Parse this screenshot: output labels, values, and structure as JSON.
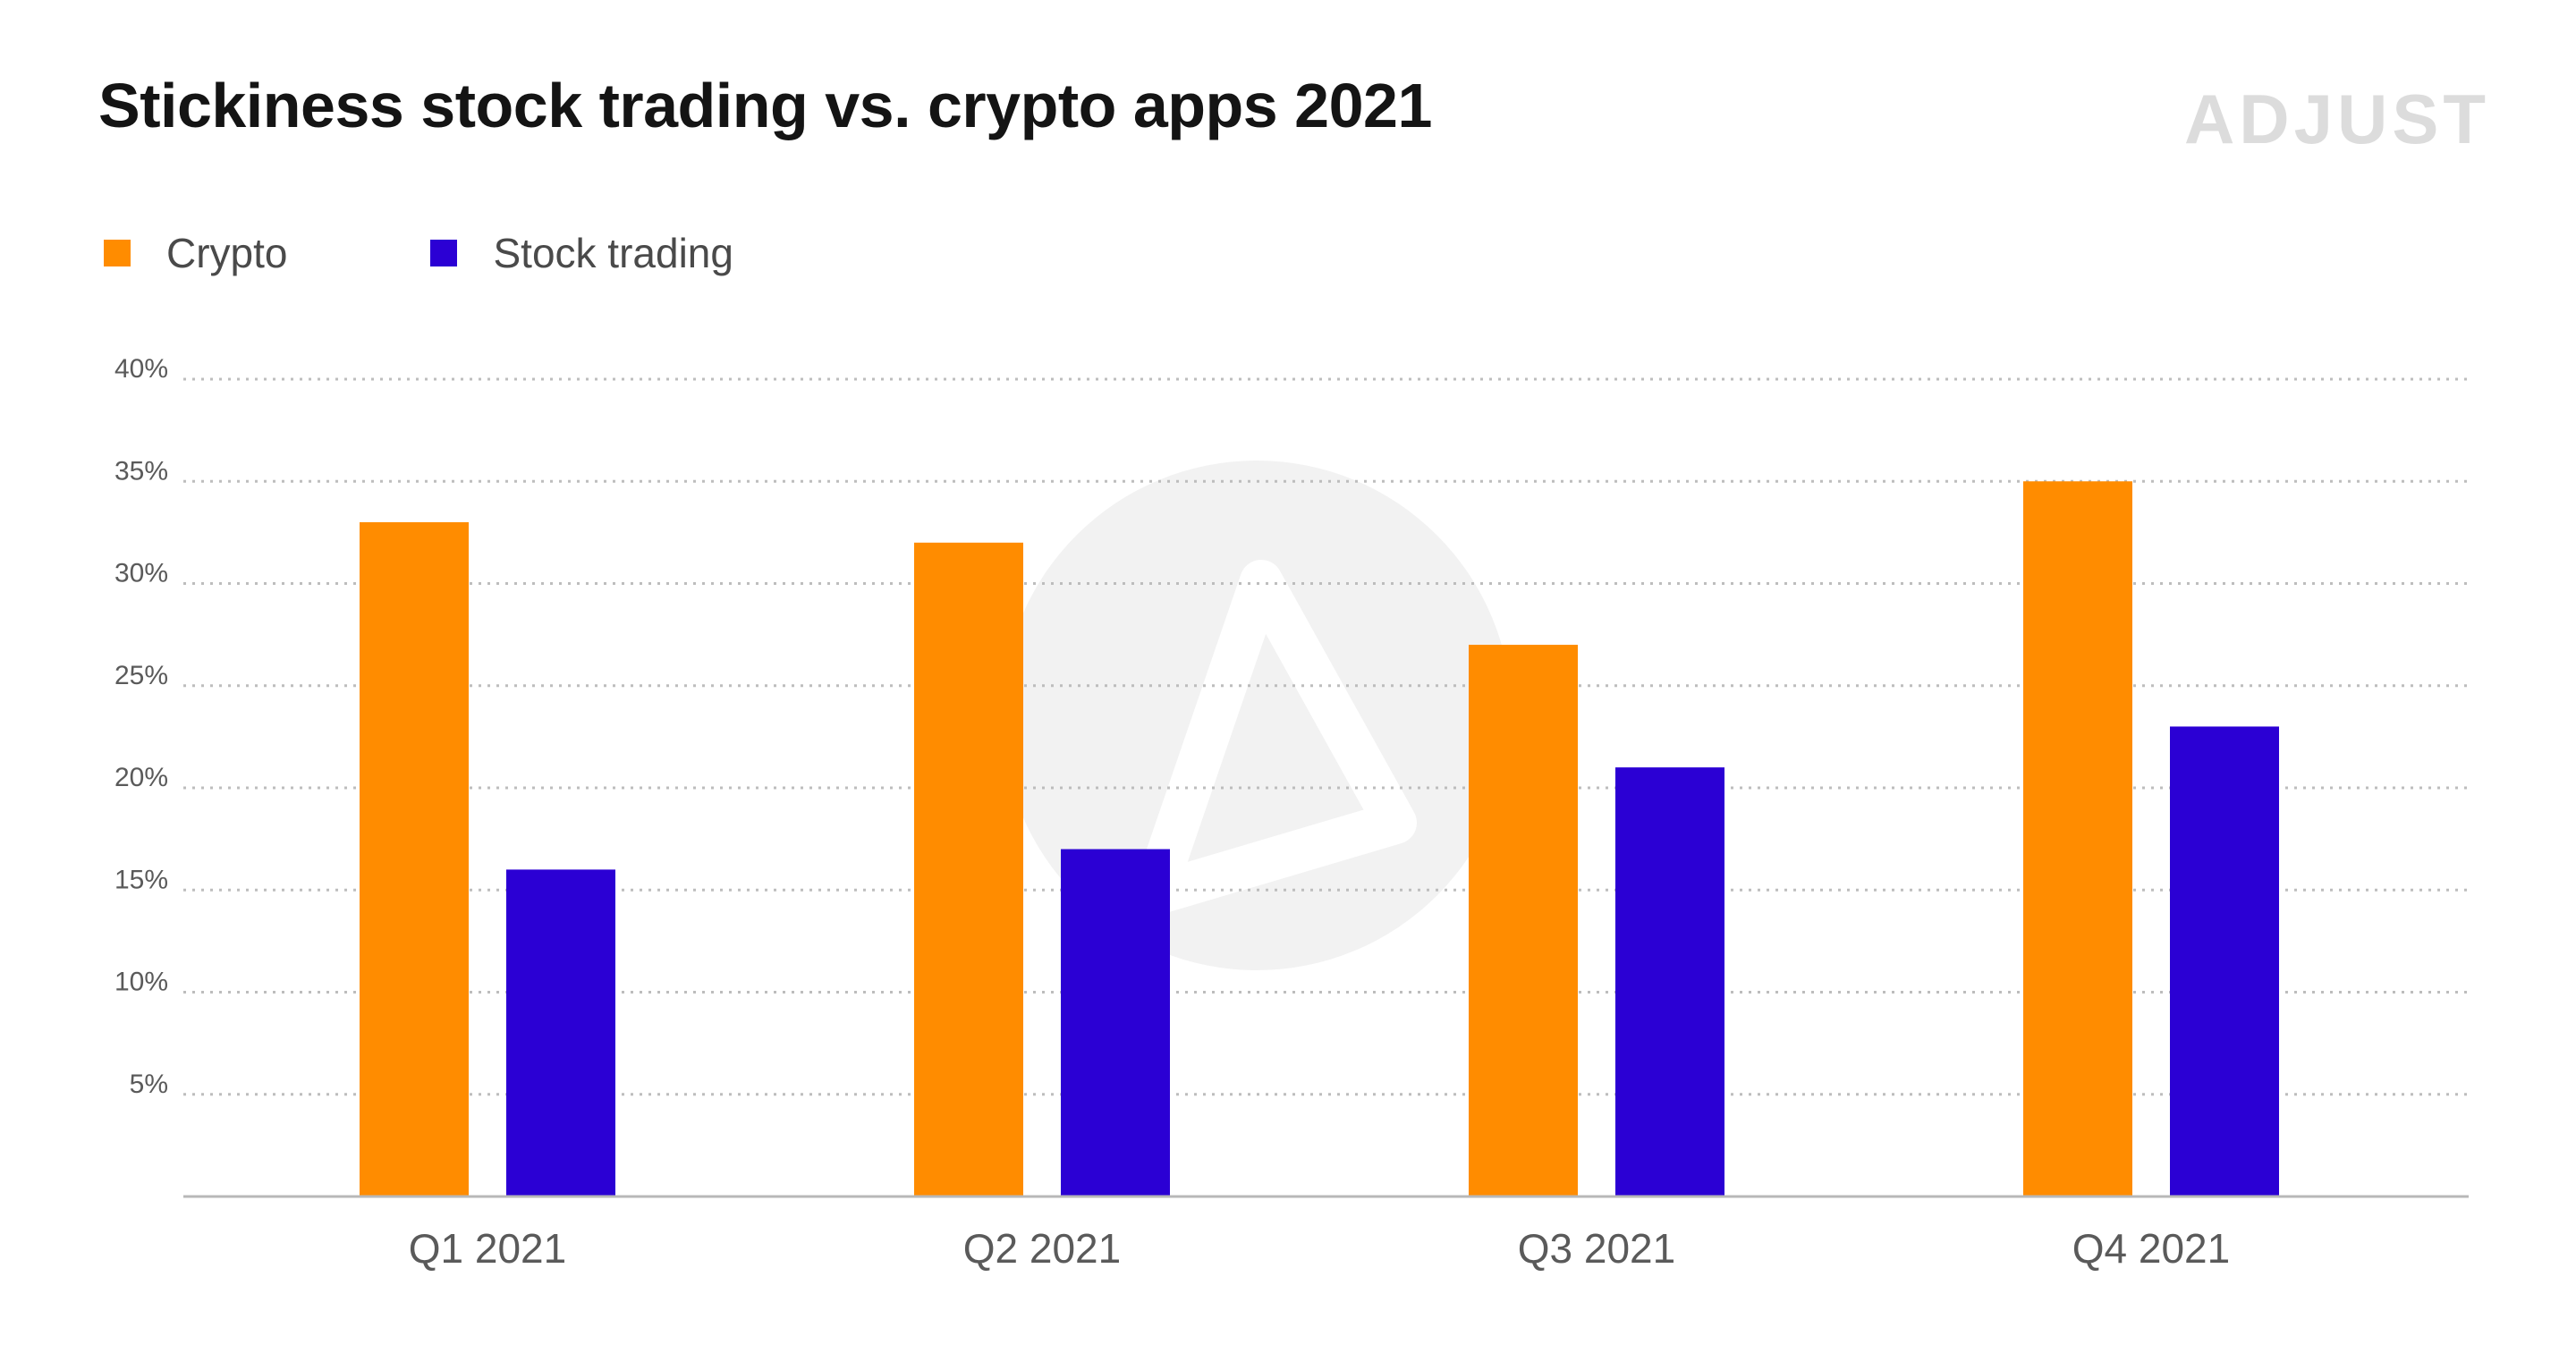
{
  "colors": {
    "crypto": "#FF8C00",
    "stock": "#2B00D4",
    "grid": "#bdbdbd",
    "axis_text": "#5a5a5a",
    "watermark": "#f2f2f2"
  },
  "brand": {
    "logo_text": "ADJUST"
  },
  "chart_data": {
    "type": "bar",
    "title": "Stickiness stock trading vs. crypto apps 2021",
    "xlabel": "",
    "ylabel": "",
    "categories": [
      "Q1 2021",
      "Q2 2021",
      "Q3 2021",
      "Q4 2021"
    ],
    "series": [
      {
        "name": "Crypto",
        "values": [
          33,
          32,
          27,
          35
        ],
        "color": "#FF8C00"
      },
      {
        "name": "Stock trading",
        "values": [
          16,
          17,
          21,
          23
        ],
        "color": "#2B00D4"
      }
    ],
    "ylim": [
      0,
      40
    ],
    "yticks": [
      5,
      10,
      15,
      20,
      25,
      30,
      35,
      40
    ],
    "ytick_labels": [
      "5%",
      "10%",
      "15%",
      "20%",
      "25%",
      "30%",
      "35%",
      "40%"
    ],
    "grid": true,
    "legend_position": "top-left"
  }
}
